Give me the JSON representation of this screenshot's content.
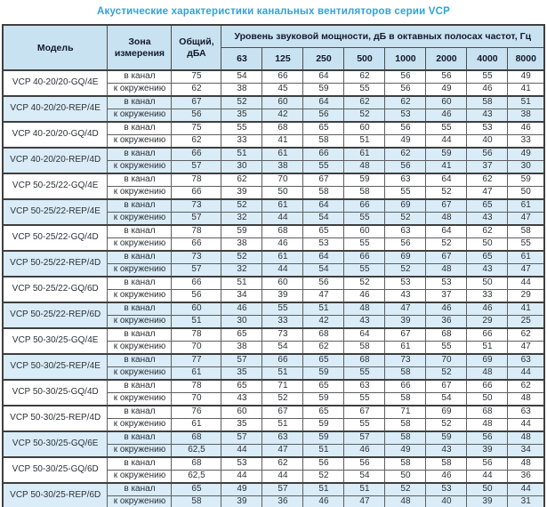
{
  "title": "Акустические характеристики канальных вентиляторов  серии VCP",
  "colors": {
    "title_text": "#29a5de",
    "header_background": "#c8e2f2",
    "highlight_row_background": "#d9ecf8",
    "border": "#4d4d4d",
    "text": "#2e3236"
  },
  "table": {
    "headers": {
      "model": "Модель",
      "zone": "Зона\nизмерения",
      "total": "Общий,\nдБА",
      "spl": "Уровень звуковой мощности, дБ в октавных полосах частот, Гц",
      "frequencies": [
        "63",
        "125",
        "250",
        "500",
        "1000",
        "2000",
        "4000",
        "8000"
      ]
    },
    "zone_labels": [
      "в канал",
      "к окружению"
    ],
    "rows": [
      {
        "model": "VCP 40-20/20-GQ/4E",
        "highlight": false,
        "in_duct": {
          "total": "75",
          "values": [
            "54",
            "66",
            "64",
            "62",
            "56",
            "56",
            "55",
            "49"
          ]
        },
        "to_surroundings": {
          "total": "62",
          "values": [
            "38",
            "45",
            "59",
            "55",
            "56",
            "49",
            "46",
            "41"
          ]
        }
      },
      {
        "model": "VCP 40-20/20-REP/4E",
        "highlight": true,
        "in_duct": {
          "total": "67",
          "values": [
            "52",
            "60",
            "64",
            "62",
            "62",
            "60",
            "58",
            "51"
          ]
        },
        "to_surroundings": {
          "total": "56",
          "values": [
            "35",
            "42",
            "56",
            "52",
            "53",
            "46",
            "43",
            "38"
          ]
        }
      },
      {
        "model": "VCP 40-20/20-GQ/4D",
        "highlight": false,
        "in_duct": {
          "total": "75",
          "values": [
            "55",
            "68",
            "65",
            "60",
            "56",
            "55",
            "53",
            "46"
          ]
        },
        "to_surroundings": {
          "total": "62",
          "values": [
            "33",
            "41",
            "58",
            "51",
            "49",
            "44",
            "40",
            "33"
          ]
        }
      },
      {
        "model": "VCP 40-20/20-REP/4D",
        "highlight": true,
        "in_duct": {
          "total": "66",
          "values": [
            "51",
            "61",
            "66",
            "61",
            "62",
            "59",
            "56",
            "49"
          ]
        },
        "to_surroundings": {
          "total": "57",
          "values": [
            "30",
            "38",
            "55",
            "48",
            "56",
            "41",
            "37",
            "30"
          ]
        }
      },
      {
        "model": "VCP 50-25/22-GQ/4E",
        "highlight": false,
        "in_duct": {
          "total": "78",
          "values": [
            "62",
            "70",
            "67",
            "59",
            "63",
            "64",
            "62",
            "59"
          ]
        },
        "to_surroundings": {
          "total": "66",
          "values": [
            "39",
            "50",
            "58",
            "58",
            "55",
            "52",
            "47",
            "50"
          ]
        }
      },
      {
        "model": "VCP 50-25/22-REP/4E",
        "highlight": true,
        "in_duct": {
          "total": "73",
          "values": [
            "52",
            "61",
            "64",
            "66",
            "69",
            "67",
            "65",
            "61"
          ]
        },
        "to_surroundings": {
          "total": "57",
          "values": [
            "32",
            "44",
            "54",
            "55",
            "52",
            "48",
            "43",
            "47"
          ]
        }
      },
      {
        "model": "VCP 50-25/22-GQ/4D",
        "highlight": false,
        "in_duct": {
          "total": "78",
          "values": [
            "59",
            "68",
            "65",
            "60",
            "63",
            "64",
            "62",
            "58"
          ]
        },
        "to_surroundings": {
          "total": "66",
          "values": [
            "38",
            "46",
            "53",
            "55",
            "56",
            "52",
            "50",
            "55"
          ]
        }
      },
      {
        "model": "VCP 50-25/22-REP/4D",
        "highlight": true,
        "in_duct": {
          "total": "73",
          "values": [
            "52",
            "61",
            "64",
            "66",
            "69",
            "67",
            "65",
            "61"
          ]
        },
        "to_surroundings": {
          "total": "57",
          "values": [
            "32",
            "44",
            "54",
            "55",
            "52",
            "48",
            "43",
            "47"
          ]
        }
      },
      {
        "model": "VCP 50-25/22-GQ/6D",
        "highlight": false,
        "in_duct": {
          "total": "66",
          "values": [
            "51",
            "60",
            "56",
            "52",
            "53",
            "53",
            "50",
            "44"
          ]
        },
        "to_surroundings": {
          "total": "56",
          "values": [
            "34",
            "39",
            "47",
            "46",
            "43",
            "37",
            "33",
            "29"
          ]
        }
      },
      {
        "model": "VCP 50-25/22-REP/6D",
        "highlight": true,
        "in_duct": {
          "total": "60",
          "values": [
            "46",
            "55",
            "51",
            "48",
            "47",
            "46",
            "46",
            "41"
          ]
        },
        "to_surroundings": {
          "total": "51",
          "values": [
            "30",
            "33",
            "42",
            "43",
            "39",
            "36",
            "29",
            "25"
          ]
        }
      },
      {
        "model": "VCP 50-30/25-GQ/4E",
        "highlight": false,
        "in_duct": {
          "total": "78",
          "values": [
            "65",
            "73",
            "68",
            "64",
            "67",
            "68",
            "66",
            "62"
          ]
        },
        "to_surroundings": {
          "total": "70",
          "values": [
            "38",
            "54",
            "62",
            "58",
            "61",
            "55",
            "51",
            "47"
          ]
        }
      },
      {
        "model": "VCP 50-30/25-REP/4E",
        "highlight": true,
        "in_duct": {
          "total": "77",
          "values": [
            "57",
            "66",
            "65",
            "68",
            "73",
            "70",
            "69",
            "63"
          ]
        },
        "to_surroundings": {
          "total": "61",
          "values": [
            "35",
            "51",
            "59",
            "55",
            "58",
            "52",
            "48",
            "44"
          ]
        }
      },
      {
        "model": "VCP 50-30/25-GQ/4D",
        "highlight": false,
        "in_duct": {
          "total": "78",
          "values": [
            "65",
            "71",
            "65",
            "63",
            "66",
            "67",
            "66",
            "62"
          ]
        },
        "to_surroundings": {
          "total": "70",
          "values": [
            "43",
            "52",
            "59",
            "55",
            "58",
            "54",
            "50",
            "48"
          ]
        }
      },
      {
        "model": "VCP 50-30/25-REP/4D",
        "highlight": false,
        "in_duct": {
          "total": "76",
          "values": [
            "60",
            "67",
            "65",
            "67",
            "71",
            "69",
            "68",
            "63"
          ]
        },
        "to_surroundings": {
          "total": "61",
          "values": [
            "35",
            "51",
            "59",
            "55",
            "58",
            "52",
            "48",
            "44"
          ]
        }
      },
      {
        "model": "VCP 50-30/25-GQ/6E",
        "highlight": true,
        "in_duct": {
          "total": "68",
          "values": [
            "57",
            "63",
            "59",
            "57",
            "58",
            "59",
            "56",
            "48"
          ]
        },
        "to_surroundings": {
          "total": "62,5",
          "values": [
            "44",
            "47",
            "51",
            "46",
            "49",
            "43",
            "39",
            "34"
          ]
        }
      },
      {
        "model": "VCP 50-30/25-GQ/6D",
        "highlight": false,
        "in_duct": {
          "total": "68",
          "values": [
            "53",
            "62",
            "56",
            "56",
            "58",
            "58",
            "56",
            "48"
          ]
        },
        "to_surroundings": {
          "total": "62,5",
          "values": [
            "44",
            "44",
            "52",
            "54",
            "50",
            "46",
            "44",
            "36"
          ]
        }
      },
      {
        "model": "VCP 50-30/25-REP/6D",
        "highlight": true,
        "in_duct": {
          "total": "65",
          "values": [
            "49",
            "57",
            "51",
            "51",
            "52",
            "53",
            "50",
            "44"
          ]
        },
        "to_surroundings": {
          "total": "58",
          "values": [
            "39",
            "36",
            "46",
            "47",
            "48",
            "40",
            "39",
            "31"
          ]
        }
      }
    ]
  }
}
